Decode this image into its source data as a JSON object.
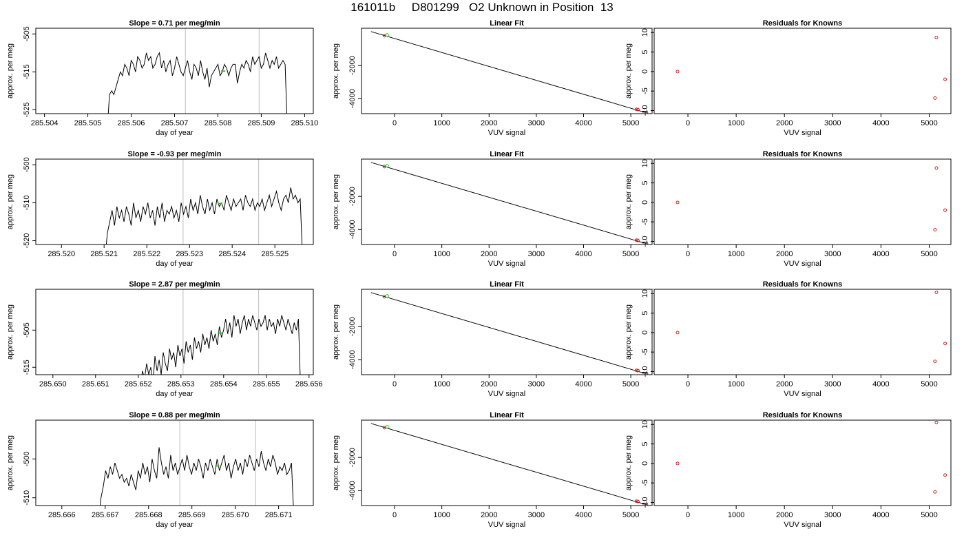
{
  "title": "161011b     D801299   O2 Unknown in Position  13",
  "chart_data": [
    {
      "type": "line",
      "panel": "time-series-1",
      "title": "Slope =  0.71  per meg/min",
      "xlabel": "day of year",
      "ylabel": "approx. per meg",
      "xlim": [
        285.5038,
        285.5102
      ],
      "ylim": [
        -526,
        -503.5
      ],
      "y_reversed": true,
      "x_ticks": [
        "285.504",
        "285.505",
        "285.506",
        "285.507",
        "285.508",
        "285.509",
        "285.510"
      ],
      "x_tick_values": [
        285.504,
        285.505,
        285.506,
        285.507,
        285.508,
        285.509,
        285.51
      ],
      "y_ticks": [
        "-505",
        "-515",
        "-525"
      ],
      "y_tick_values": [
        -505,
        -515,
        -525
      ],
      "vlines": [
        285.50725,
        285.50895
      ],
      "series": [
        {
          "x_start": 285.50545,
          "x_end": 285.5096,
          "values": [
            -530,
            -521,
            -520,
            -521,
            -519,
            -517,
            -515,
            -516,
            -513,
            -514,
            -516,
            -512,
            -513,
            -515,
            -511,
            -512,
            -514,
            -513,
            -510,
            -512,
            -511,
            -514,
            -513,
            -511,
            -510,
            -514,
            -512,
            -515,
            -513,
            -512,
            -516,
            -514,
            -511,
            -513,
            -515,
            -516,
            -514,
            -512,
            -515,
            -517,
            -513,
            -514,
            -516,
            -512,
            -515,
            -517,
            -514,
            -519,
            -516,
            -515,
            -514,
            -513,
            -516,
            -515,
            -513,
            -514,
            -516,
            -514,
            -513,
            -513,
            -518,
            -515,
            -513,
            -514,
            -512,
            -513,
            -515,
            -511,
            -513,
            -512,
            -511,
            -514,
            -513,
            -510,
            -512,
            -514,
            -512,
            -513,
            -511,
            -514,
            -513,
            -512,
            -513,
            -530
          ]
        }
      ],
      "marker": {
        "x": 285.50812,
        "y": -514.8,
        "color": "#22cc22"
      }
    },
    {
      "type": "scatter",
      "panel": "linear-fit-1",
      "title": "Linear Fit",
      "xlabel": "VUV signal",
      "ylabel": "approx. per meg",
      "xlim": [
        -700,
        5450
      ],
      "ylim": [
        -4900,
        250
      ],
      "y_reversed": true,
      "x_ticks": [
        "0",
        "1000",
        "2000",
        "3000",
        "4000",
        "5000"
      ],
      "x_tick_values": [
        0,
        1000,
        2000,
        3000,
        4000,
        5000
      ],
      "y_ticks": [
        "-2000",
        "-4000"
      ],
      "y_tick_values": [
        -2000,
        -4000
      ],
      "fit_line": {
        "x": [
          -500,
          5330
        ],
        "y": [
          50,
          -4850
        ]
      },
      "points": {
        "x": [
          -215,
          5120,
          5150,
          5330
        ],
        "y": [
          -200,
          -4640,
          -4655,
          -4830
        ],
        "color": "#cc2222"
      },
      "unknown": {
        "x": -215,
        "y": -190,
        "color": "#22cc22"
      }
    },
    {
      "type": "scatter",
      "panel": "residuals-1",
      "title": "Residuals for Knowns",
      "xlabel": "VUV signal",
      "ylabel": "approx. per meg",
      "xlim": [
        -700,
        5450
      ],
      "ylim": [
        -10.8,
        11.1
      ],
      "x_ticks": [
        "0",
        "1000",
        "2000",
        "3000",
        "4000",
        "5000"
      ],
      "x_tick_values": [
        0,
        1000,
        2000,
        3000,
        4000,
        5000
      ],
      "y_ticks": [
        "10",
        "5",
        "0",
        "-5",
        "-10"
      ],
      "y_tick_values": [
        10,
        5,
        0,
        -5,
        -10
      ],
      "points": {
        "x": [
          -215,
          5120,
          5150,
          5330
        ],
        "y": [
          0,
          -6.8,
          8.7,
          -2
        ],
        "color": "#cc2222"
      }
    },
    {
      "type": "line",
      "panel": "time-series-2",
      "title": "Slope =  -0.93  per meg/min",
      "xlabel": "day of year",
      "ylabel": "approx. per meg",
      "xlim": [
        285.5194,
        285.5259
      ],
      "ylim": [
        -521,
        -498.5
      ],
      "y_reversed": true,
      "x_ticks": [
        "285.520",
        "285.521",
        "285.522",
        "285.523",
        "285.524",
        "285.525"
      ],
      "x_tick_values": [
        285.52,
        285.521,
        285.522,
        285.523,
        285.524,
        285.525
      ],
      "y_ticks": [
        "-500",
        "-510",
        "-520"
      ],
      "y_tick_values": [
        -500,
        -510,
        -520
      ],
      "vlines": [
        285.52285,
        285.52462
      ],
      "series": [
        {
          "x_start": 285.52102,
          "x_end": 285.52565,
          "values": [
            -525,
            -518,
            -515,
            -512,
            -516,
            -511,
            -514,
            -512,
            -515,
            -511,
            -513,
            -516,
            -510,
            -514,
            -512,
            -515,
            -511,
            -513,
            -510,
            -514,
            -512,
            -516,
            -511,
            -514,
            -510,
            -515,
            -512,
            -513,
            -511,
            -514,
            -512,
            -515,
            -510,
            -513,
            -511,
            -514,
            -509,
            -512,
            -510,
            -513,
            -508,
            -511,
            -513,
            -509,
            -512,
            -510,
            -513,
            -509,
            -511,
            -510,
            -512,
            -508,
            -510,
            -512,
            -509,
            -511,
            -510,
            -509,
            -512,
            -508,
            -510,
            -511,
            -509,
            -512,
            -510,
            -511,
            -509,
            -512,
            -510,
            -508,
            -511,
            -509,
            -507,
            -510,
            -512,
            -509,
            -508,
            -510,
            -506,
            -509,
            -508,
            -510,
            -509,
            -525
          ]
        }
      ],
      "marker": {
        "x": 285.52372,
        "y": -510.2,
        "color": "#22cc22"
      }
    },
    {
      "type": "scatter",
      "panel": "linear-fit-2",
      "title": "Linear Fit",
      "xlabel": "VUV signal",
      "ylabel": "approx. per meg",
      "xlim": [
        -700,
        5450
      ],
      "ylim": [
        -4900,
        250
      ],
      "y_reversed": true,
      "x_ticks": [
        "0",
        "1000",
        "2000",
        "3000",
        "4000",
        "5000"
      ],
      "x_tick_values": [
        0,
        1000,
        2000,
        3000,
        4000,
        5000
      ],
      "y_ticks": [
        "-2000",
        "-4000"
      ],
      "y_tick_values": [
        -2000,
        -4000
      ],
      "fit_line": {
        "x": [
          -500,
          5330
        ],
        "y": [
          50,
          -4850
        ]
      },
      "points": {
        "x": [
          -215,
          5120,
          5150,
          5330
        ],
        "y": [
          -200,
          -4640,
          -4655,
          -4830
        ],
        "color": "#cc2222"
      },
      "unknown": {
        "x": -215,
        "y": -190,
        "color": "#22cc22"
      }
    },
    {
      "type": "scatter",
      "panel": "residuals-2",
      "title": "Residuals for Knowns",
      "xlabel": "VUV signal",
      "ylabel": "approx. per meg",
      "xlim": [
        -700,
        5450
      ],
      "ylim": [
        -10.8,
        11.1
      ],
      "x_ticks": [
        "0",
        "1000",
        "2000",
        "3000",
        "4000",
        "5000"
      ],
      "x_tick_values": [
        0,
        1000,
        2000,
        3000,
        4000,
        5000
      ],
      "y_ticks": [
        "10",
        "5",
        "0",
        "-5",
        "-10"
      ],
      "y_tick_values": [
        10,
        5,
        0,
        -5,
        -10
      ],
      "points": {
        "x": [
          -215,
          5120,
          5150,
          5330
        ],
        "y": [
          0,
          -7,
          8.8,
          -2
        ],
        "color": "#cc2222"
      }
    },
    {
      "type": "line",
      "panel": "time-series-3",
      "title": "Slope =  2.87  per meg/min",
      "xlabel": "day of year",
      "ylabel": "approx. per meg",
      "xlim": [
        285.6496,
        285.6561
      ],
      "ylim": [
        -517,
        -494
      ],
      "y_reversed": true,
      "x_ticks": [
        "285.650",
        "285.651",
        "285.652",
        "285.653",
        "285.654",
        "285.655",
        "285.656"
      ],
      "x_tick_values": [
        285.65,
        285.651,
        285.652,
        285.653,
        285.654,
        285.655,
        285.656
      ],
      "y_ticks": [
        "-505",
        "-515"
      ],
      "y_tick_values": [
        -505,
        -515
      ],
      "vlines": [
        285.65305,
        285.65482
      ],
      "series": [
        {
          "x_start": 285.65205,
          "x_end": 285.6558,
          "values": [
            -520,
            -516,
            -518,
            -514,
            -517,
            -515,
            -520,
            -512,
            -516,
            -513,
            -517,
            -511,
            -514,
            -516,
            -510,
            -513,
            -511,
            -515,
            -509,
            -512,
            -510,
            -514,
            -508,
            -511,
            -509,
            -513,
            -507,
            -510,
            -508,
            -511,
            -506,
            -509,
            -507,
            -510,
            -505,
            -508,
            -506,
            -509,
            -504,
            -507,
            -505,
            -502,
            -506,
            -503,
            -507,
            -501,
            -504,
            -502,
            -506,
            -503,
            -501,
            -505,
            -502,
            -504,
            -501,
            -503,
            -505,
            -502,
            -504,
            -503,
            -501,
            -505,
            -502,
            -504,
            -503,
            -506,
            -502,
            -504,
            -501,
            -503,
            -505,
            -502,
            -504,
            -506,
            -503,
            -505,
            -502,
            -520
          ]
        }
      ],
      "marker": {
        "x": 285.65391,
        "y": -505.8,
        "color": "#22cc22"
      }
    },
    {
      "type": "scatter",
      "panel": "linear-fit-3",
      "title": "Linear Fit",
      "xlabel": "VUV signal",
      "ylabel": "approx. per meg",
      "xlim": [
        -700,
        5450
      ],
      "ylim": [
        -4900,
        250
      ],
      "y_reversed": true,
      "x_ticks": [
        "0",
        "1000",
        "2000",
        "3000",
        "4000",
        "5000"
      ],
      "x_tick_values": [
        0,
        1000,
        2000,
        3000,
        4000,
        5000
      ],
      "y_ticks": [
        "-2000",
        "-4000"
      ],
      "y_tick_values": [
        -2000,
        -4000
      ],
      "fit_line": {
        "x": [
          -500,
          5330
        ],
        "y": [
          50,
          -4850
        ]
      },
      "points": {
        "x": [
          -215,
          5120,
          5150,
          5330
        ],
        "y": [
          -200,
          -4640,
          -4655,
          -4830
        ],
        "color": "#cc2222"
      },
      "unknown": {
        "x": -215,
        "y": -190,
        "color": "#22cc22"
      }
    },
    {
      "type": "scatter",
      "panel": "residuals-3",
      "title": "Residuals for Knowns",
      "xlabel": "VUV signal",
      "ylabel": "approx. per meg",
      "xlim": [
        -700,
        5450
      ],
      "ylim": [
        -10.8,
        11.1
      ],
      "x_ticks": [
        "0",
        "1000",
        "2000",
        "3000",
        "4000",
        "5000"
      ],
      "x_tick_values": [
        0,
        1000,
        2000,
        3000,
        4000,
        5000
      ],
      "y_ticks": [
        "10",
        "5",
        "0",
        "-5",
        "-10"
      ],
      "y_tick_values": [
        10,
        5,
        0,
        -5,
        -10
      ],
      "points": {
        "x": [
          -215,
          5120,
          5150,
          5330
        ],
        "y": [
          0,
          -7.4,
          10.3,
          -2.8
        ],
        "color": "#cc2222"
      }
    },
    {
      "type": "line",
      "panel": "time-series-4",
      "title": "Slope =  0.88  per meg/min",
      "xlabel": "day of year",
      "ylabel": "approx. per meg",
      "xlim": [
        285.6654,
        285.6718
      ],
      "ylim": [
        -512,
        -490
      ],
      "y_reversed": true,
      "x_ticks": [
        "285.666",
        "285.667",
        "285.668",
        "285.669",
        "285.670",
        "285.671"
      ],
      "x_tick_values": [
        285.666,
        285.667,
        285.668,
        285.669,
        285.67,
        285.671
      ],
      "y_ticks": [
        "-500",
        "-510"
      ],
      "y_tick_values": [
        -500,
        -510
      ],
      "vlines": [
        285.66872,
        285.67047
      ],
      "series": [
        {
          "x_start": 285.66685,
          "x_end": 285.67135,
          "values": [
            -515,
            -510,
            -507,
            -503,
            -505,
            -502,
            -504,
            -501,
            -503,
            -505,
            -504,
            -506,
            -505,
            -507,
            -504,
            -506,
            -508,
            -503,
            -505,
            -501,
            -504,
            -502,
            -506,
            -500,
            -503,
            -505,
            -497,
            -501,
            -504,
            -502,
            -505,
            -499,
            -503,
            -501,
            -504,
            -502,
            -500,
            -503,
            -499,
            -502,
            -504,
            -501,
            -503,
            -500,
            -502,
            -505,
            -501,
            -503,
            -500,
            -502,
            -504,
            -500,
            -503,
            -501,
            -499,
            -503,
            -501,
            -505,
            -502,
            -500,
            -503,
            -501,
            -504,
            -500,
            -502,
            -499,
            -501,
            -503,
            -500,
            -502,
            -498,
            -501,
            -503,
            -500,
            -502,
            -499,
            -501,
            -504,
            -502,
            -503,
            -501,
            -504,
            -503,
            -501,
            -515
          ]
        }
      ],
      "marker": {
        "x": 285.66958,
        "y": -501.8,
        "color": "#22cc22"
      }
    },
    {
      "type": "scatter",
      "panel": "linear-fit-4",
      "title": "Linear Fit",
      "xlabel": "VUV signal",
      "ylabel": "approx. per meg",
      "xlim": [
        -700,
        5450
      ],
      "ylim": [
        -4900,
        250
      ],
      "y_reversed": true,
      "x_ticks": [
        "0",
        "1000",
        "2000",
        "3000",
        "4000",
        "5000"
      ],
      "x_tick_values": [
        0,
        1000,
        2000,
        3000,
        4000,
        5000
      ],
      "y_ticks": [
        "-2000",
        "-4000"
      ],
      "y_tick_values": [
        -2000,
        -4000
      ],
      "fit_line": {
        "x": [
          -500,
          5330
        ],
        "y": [
          50,
          -4850
        ]
      },
      "points": {
        "x": [
          -215,
          5120,
          5150,
          5330
        ],
        "y": [
          -200,
          -4640,
          -4655,
          -4830
        ],
        "color": "#cc2222"
      },
      "unknown": {
        "x": -215,
        "y": -190,
        "color": "#22cc22"
      }
    },
    {
      "type": "scatter",
      "panel": "residuals-4",
      "title": "Residuals for Knowns",
      "xlabel": "VUV signal",
      "ylabel": "approx. per meg",
      "xlim": [
        -700,
        5450
      ],
      "ylim": [
        -10.8,
        11.1
      ],
      "x_ticks": [
        "0",
        "1000",
        "2000",
        "3000",
        "4000",
        "5000"
      ],
      "x_tick_values": [
        0,
        1000,
        2000,
        3000,
        4000,
        5000
      ],
      "y_ticks": [
        "10",
        "5",
        "0",
        "-5",
        "-10"
      ],
      "y_tick_values": [
        10,
        5,
        0,
        -5,
        -10
      ],
      "points": {
        "x": [
          -215,
          5120,
          5150,
          5330
        ],
        "y": [
          0,
          -7.3,
          10.5,
          -3
        ],
        "color": "#cc2222"
      }
    }
  ]
}
